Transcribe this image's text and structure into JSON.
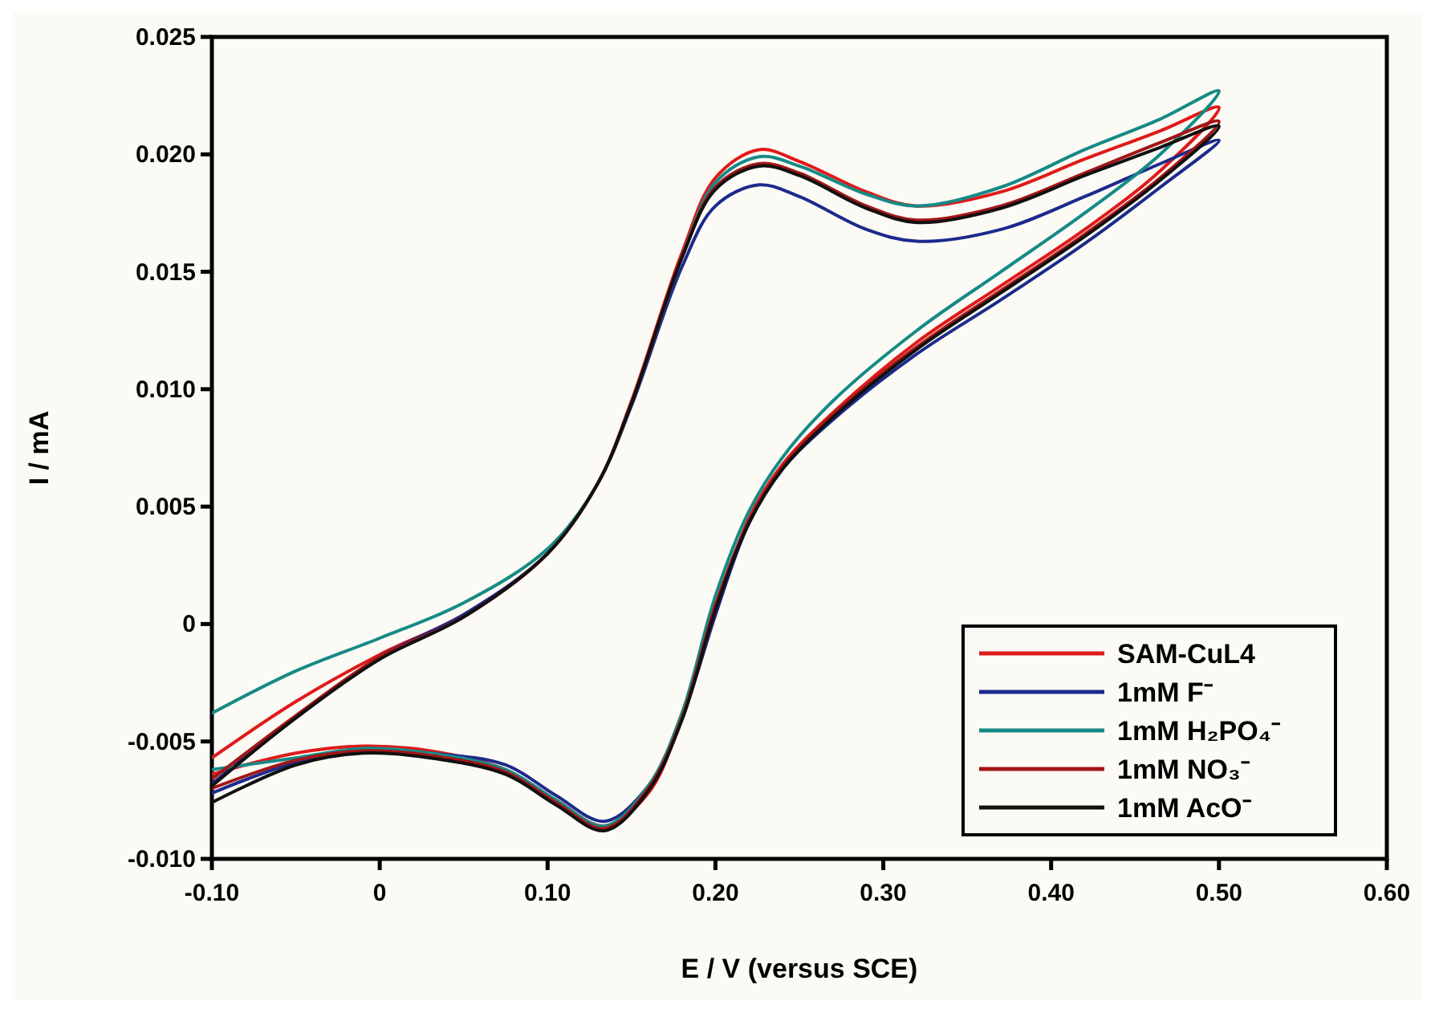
{
  "chart_data": {
    "type": "line",
    "xlabel": "E / V (versus SCE)",
    "ylabel": "I / mA",
    "xlim": [
      -0.1,
      0.6
    ],
    "ylim": [
      -0.01,
      0.025
    ],
    "xticks": [
      {
        "value": -0.1,
        "label": "-0.10"
      },
      0,
      {
        "value": 0.1,
        "label": "0.10"
      },
      {
        "value": 0.2,
        "label": "0.20"
      },
      {
        "value": 0.3,
        "label": "0.30"
      },
      {
        "value": 0.4,
        "label": "0.40"
      },
      {
        "value": 0.5,
        "label": "0.50"
      },
      {
        "value": 0.6,
        "label": "0.60"
      }
    ],
    "yticks": [
      {
        "value": -0.01,
        "label": "-0.010"
      },
      {
        "value": -0.005,
        "label": "-0.005"
      },
      0,
      {
        "value": 0.005,
        "label": "0.005"
      },
      {
        "value": 0.01,
        "label": "0.010"
      },
      {
        "value": 0.015,
        "label": "0.015"
      },
      {
        "value": 0.02,
        "label": "0.020"
      },
      {
        "value": 0.025,
        "label": "0.025"
      }
    ],
    "grid": false,
    "legend": "bottom right",
    "marker": "none",
    "line_style": "solid",
    "x": [
      -0.1,
      -0.05,
      0,
      0.05,
      0.1,
      0.13,
      0.15,
      0.18,
      0.2,
      0.226,
      0.25,
      0.29,
      0.32,
      0.37,
      0.42,
      0.465,
      0.5,
      0.465,
      0.42,
      0.37,
      0.32,
      0.27,
      0.24,
      0.22,
      0.2,
      0.18,
      0.16,
      0.134,
      0.105,
      0.075,
      0.03,
      -0.01,
      -0.05,
      -0.1
    ],
    "series": [
      {
        "name": "SAM-CuL4",
        "color": "#e01a1a",
        "values": [
          -0.0057,
          -0.0033,
          -0.0013,
          0.0004,
          0.003,
          0.006,
          0.0095,
          0.0158,
          0.019,
          0.0202,
          0.0197,
          0.0184,
          0.0178,
          0.0184,
          0.0198,
          0.021,
          0.022,
          0.0193,
          0.0168,
          0.0144,
          0.012,
          0.009,
          0.0068,
          0.0045,
          0.0004,
          -0.004,
          -0.0072,
          -0.0086,
          -0.0075,
          -0.0062,
          -0.0054,
          -0.0052,
          -0.0055,
          -0.0064
        ]
      },
      {
        "name": "1mM F⁻",
        "color": "#1c2a8c",
        "values": [
          -0.0068,
          -0.004,
          -0.0014,
          0.0004,
          0.003,
          0.006,
          0.0093,
          0.0152,
          0.0178,
          0.0187,
          0.0182,
          0.0168,
          0.0163,
          0.0168,
          0.0182,
          0.0196,
          0.0206,
          0.0186,
          0.0162,
          0.0138,
          0.0115,
          0.0087,
          0.0066,
          0.0043,
          0.0004,
          -0.004,
          -0.0069,
          -0.0084,
          -0.0073,
          -0.006,
          -0.0055,
          -0.0054,
          -0.0059,
          -0.0072
        ]
      },
      {
        "name": "1mM H₂PO₄⁻",
        "color": "#168a86",
        "values": [
          -0.0038,
          -0.002,
          -0.0006,
          0.0009,
          0.0032,
          0.006,
          0.0094,
          0.0156,
          0.0188,
          0.0199,
          0.0195,
          0.0183,
          0.0178,
          0.0186,
          0.0202,
          0.0215,
          0.0227,
          0.02,
          0.0175,
          0.015,
          0.0125,
          0.0095,
          0.0071,
          0.0048,
          0.0012,
          -0.0038,
          -0.0069,
          -0.0086,
          -0.0075,
          -0.0062,
          -0.0055,
          -0.0053,
          -0.0057,
          -0.0062
        ]
      },
      {
        "name": "1mM NO₃⁻",
        "color": "#a31616",
        "values": [
          -0.0066,
          -0.0039,
          -0.0014,
          0.0003,
          0.003,
          0.006,
          0.0094,
          0.0156,
          0.0186,
          0.0196,
          0.0192,
          0.0178,
          0.0172,
          0.0178,
          0.0192,
          0.0205,
          0.0214,
          0.019,
          0.0166,
          0.0142,
          0.0118,
          0.0089,
          0.0067,
          0.0044,
          0.0008,
          -0.004,
          -0.007,
          -0.0087,
          -0.0076,
          -0.0063,
          -0.0056,
          -0.0054,
          -0.0058,
          -0.007
        ]
      },
      {
        "name": "1mM AcO⁻",
        "color": "#111111",
        "values": [
          -0.0069,
          -0.004,
          -0.0015,
          0.0003,
          0.003,
          0.006,
          0.0094,
          0.0156,
          0.0185,
          0.0195,
          0.0191,
          0.0177,
          0.0171,
          0.0177,
          0.0191,
          0.0203,
          0.0212,
          0.0189,
          0.0165,
          0.0141,
          0.0117,
          0.0088,
          0.0066,
          0.0043,
          0.0006,
          -0.0041,
          -0.0071,
          -0.0088,
          -0.0077,
          -0.0064,
          -0.0057,
          -0.0055,
          -0.006,
          -0.0076
        ]
      }
    ]
  }
}
